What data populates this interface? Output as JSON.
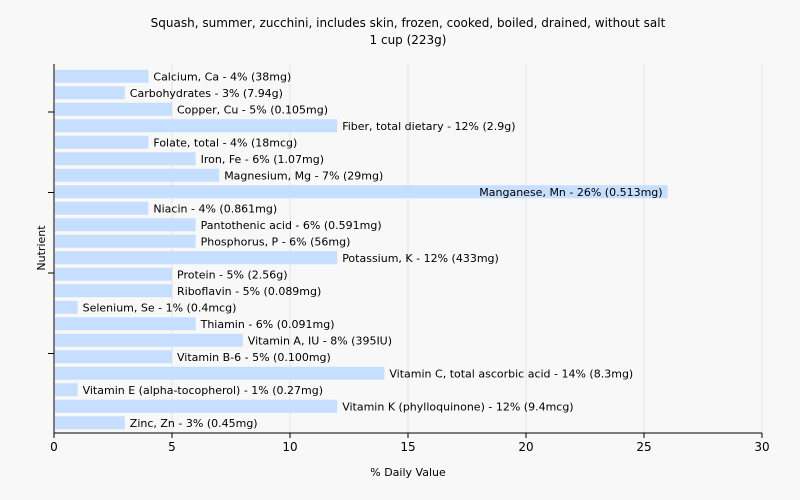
{
  "chart_data": {
    "type": "bar",
    "orientation": "horizontal",
    "title": "Squash, summer, zucchini, includes skin, frozen, cooked, boiled, drained, without salt",
    "subtitle": "1 cup (223g)",
    "xlabel": "% Daily Value",
    "ylabel": "Nutrient",
    "xlim": [
      0,
      30
    ],
    "xticks": [
      "0",
      "5",
      "10",
      "15",
      "20",
      "25",
      "30"
    ],
    "grid": true,
    "colors": {
      "bar": "#c6deff",
      "grid": "#e2e2e2",
      "axis": "#000000",
      "background": "#f8f8f8"
    },
    "categories": [
      "Calcium, Ca",
      "Carbohydrates",
      "Copper, Cu",
      "Fiber, total dietary",
      "Folate, total",
      "Iron, Fe",
      "Magnesium, Mg",
      "Manganese, Mn",
      "Niacin",
      "Pantothenic acid",
      "Phosphorus, P",
      "Potassium, K",
      "Protein",
      "Riboflavin",
      "Selenium, Se",
      "Thiamin",
      "Vitamin A, IU",
      "Vitamin B-6",
      "Vitamin C, total ascorbic acid",
      "Vitamin E (alpha-tocopherol)",
      "Vitamin K (phylloquinone)",
      "Zinc, Zn"
    ],
    "values": [
      4,
      3,
      5,
      12,
      4,
      6,
      7,
      26,
      4,
      6,
      6,
      12,
      5,
      5,
      1,
      6,
      8,
      5,
      14,
      1,
      12,
      3
    ],
    "labels": [
      "Calcium, Ca - 4% (38mg)",
      "Carbohydrates - 3% (7.94g)",
      "Copper, Cu - 5% (0.105mg)",
      "Fiber, total dietary - 12% (2.9g)",
      "Folate, total - 4% (18mcg)",
      "Iron, Fe - 6% (1.07mg)",
      "Magnesium, Mg - 7% (29mg)",
      "Manganese, Mn - 26% (0.513mg)",
      "Niacin - 4% (0.861mg)",
      "Pantothenic acid - 6% (0.591mg)",
      "Phosphorus, P - 6% (56mg)",
      "Potassium, K - 12% (433mg)",
      "Protein - 5% (2.56g)",
      "Riboflavin - 5% (0.089mg)",
      "Selenium, Se - 1% (0.4mcg)",
      "Thiamin - 6% (0.091mg)",
      "Vitamin A, IU - 8% (395IU)",
      "Vitamin B-6 - 5% (0.100mg)",
      "Vitamin C, total ascorbic acid - 14% (8.3mg)",
      "Vitamin E (alpha-tocopherol) - 1% (0.27mg)",
      "Vitamin K (phylloquinone) - 12% (9.4mcg)",
      "Zinc, Zn - 3% (0.45mg)"
    ]
  }
}
